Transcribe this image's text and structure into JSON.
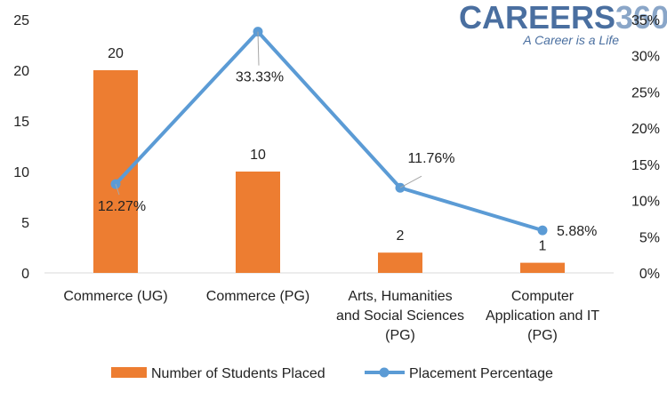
{
  "brand": {
    "name_part1": "CAREERS",
    "name_part2": "360",
    "tagline": "A Career is a Life",
    "color_dark": "#4a6fa0",
    "color_light": "#8aa6c8"
  },
  "chart_data": {
    "type": "bar+line",
    "categories": [
      [
        "Commerce (UG)"
      ],
      [
        "Commerce (PG)"
      ],
      [
        "Arts, Humanities",
        "and Social Sciences",
        "(PG)"
      ],
      [
        "Computer",
        "Application and IT",
        "(PG)"
      ]
    ],
    "series": [
      {
        "name": "Number of Students Placed",
        "type": "bar",
        "axis": "left",
        "values": [
          20,
          10,
          2,
          1
        ],
        "labels": [
          "20",
          "10",
          "2",
          "1"
        ],
        "color": "#ed7d31"
      },
      {
        "name": "Placement Percentage",
        "type": "line",
        "axis": "right",
        "values": [
          12.27,
          33.33,
          11.76,
          5.88
        ],
        "labels": [
          "12.27%",
          "33.33%",
          "11.76%",
          "5.88%"
        ],
        "color": "#5b9bd5"
      }
    ],
    "y_left": {
      "min": 0,
      "max": 25,
      "ticks": [
        "0",
        "5",
        "10",
        "15",
        "20",
        "25"
      ]
    },
    "y_right": {
      "min": 0,
      "max": 35,
      "ticks": [
        "0%",
        "5%",
        "10%",
        "15%",
        "20%",
        "25%",
        "30%",
        "35%"
      ]
    },
    "grid": false,
    "legend": "bottom"
  }
}
